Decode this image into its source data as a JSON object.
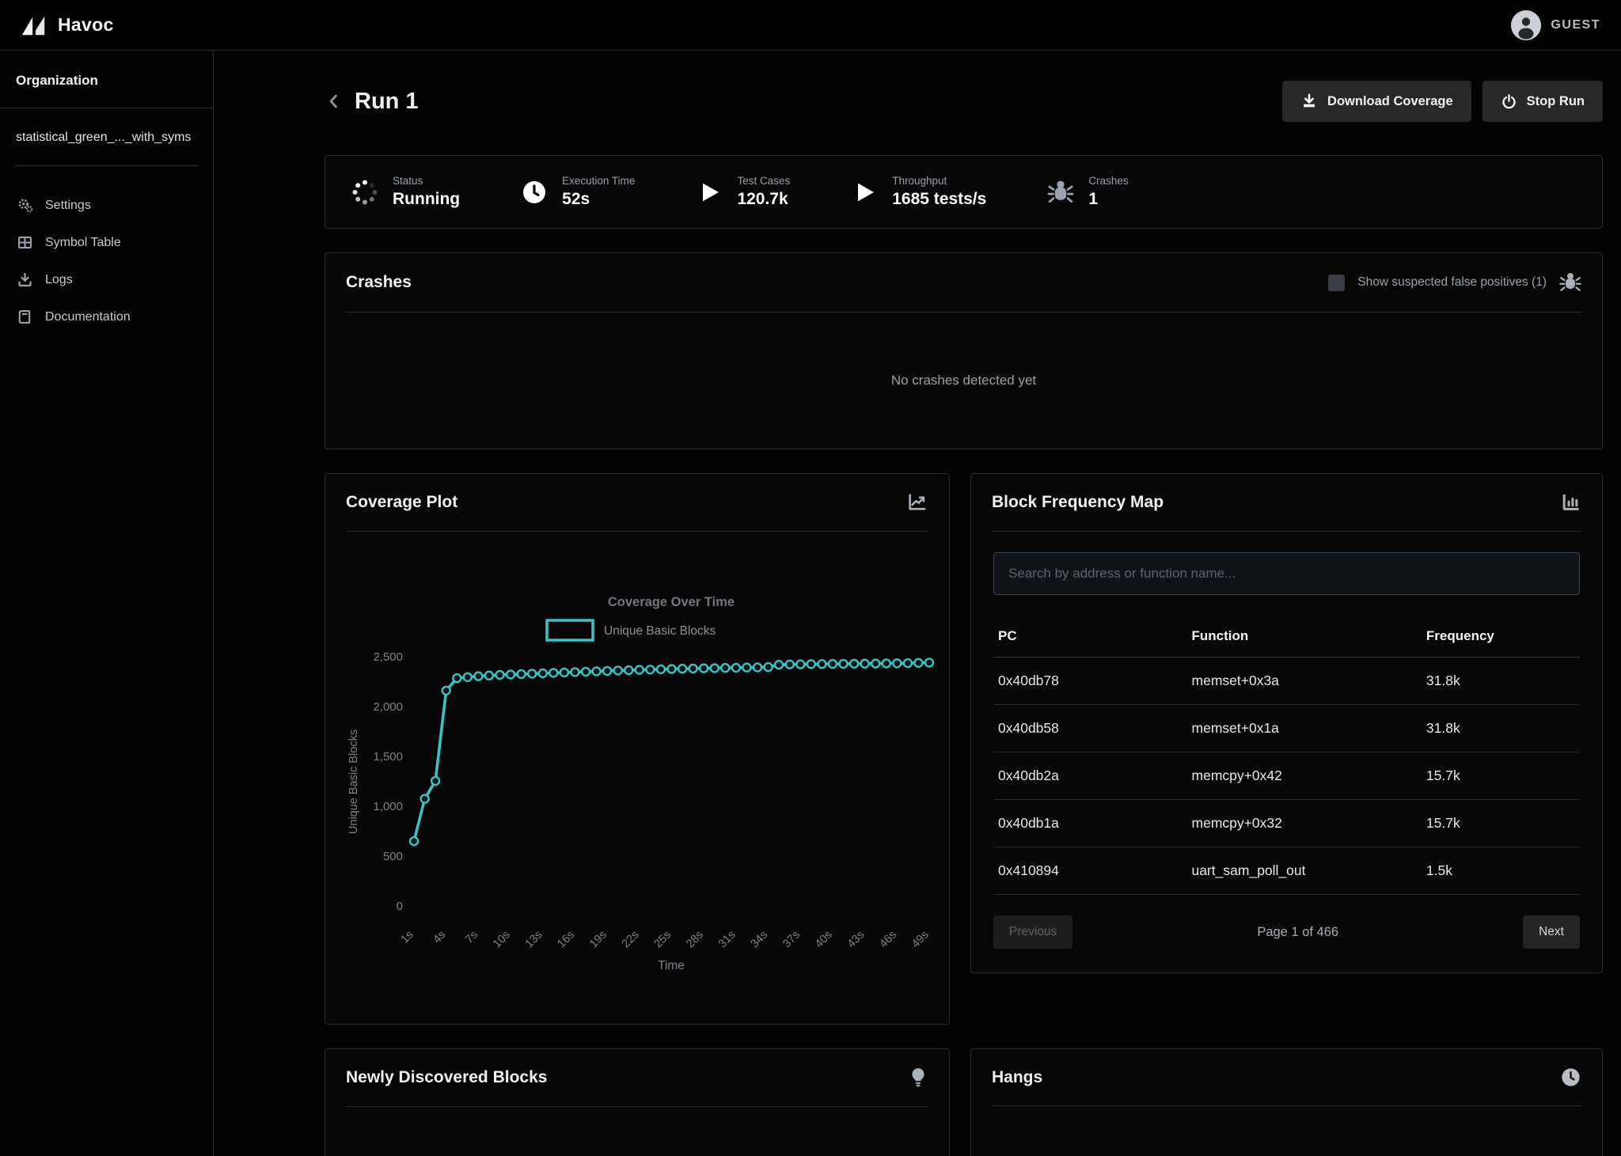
{
  "brand": {
    "name": "Havoc",
    "user": "GUEST"
  },
  "sidebar": {
    "section_label": "Organization",
    "project_name": "statistical_green_..._with_syms",
    "items": [
      {
        "label": "Settings",
        "icon": "gear-icon"
      },
      {
        "label": "Symbol Table",
        "icon": "table-icon"
      },
      {
        "label": "Logs",
        "icon": "download-icon"
      },
      {
        "label": "Documentation",
        "icon": "book-icon"
      }
    ]
  },
  "header": {
    "title": "Run 1",
    "download_button": "Download Coverage",
    "stop_button": "Stop Run"
  },
  "stats": [
    {
      "label": "Status",
      "value": "Running",
      "icon": "spinner-icon"
    },
    {
      "label": "Execution Time",
      "value": "52s",
      "icon": "clock-icon"
    },
    {
      "label": "Test Cases",
      "value": "120.7k",
      "icon": "play-icon"
    },
    {
      "label": "Throughput",
      "value": "1685 tests/s",
      "icon": "play-icon"
    },
    {
      "label": "Crashes",
      "value": "1",
      "icon": "bug-icon"
    }
  ],
  "crashes_panel": {
    "title": "Crashes",
    "checkbox_label": "Show suspected false positives (1)",
    "empty_message": "No crashes detected yet"
  },
  "coverage_panel": {
    "title": "Coverage Plot"
  },
  "chart_data": {
    "type": "line",
    "title": "Coverage Over Time",
    "xlabel": "Time",
    "ylabel": "Unique Basic Blocks",
    "legend_position": "top",
    "grid": false,
    "ylim": [
      0,
      2500
    ],
    "y_ticks": [
      0,
      500,
      1000,
      1500,
      2000,
      2500
    ],
    "x_tick_labels": [
      "1s",
      "4s",
      "7s",
      "10s",
      "13s",
      "16s",
      "19s",
      "22s",
      "25s",
      "28s",
      "31s",
      "34s",
      "37s",
      "40s",
      "43s",
      "46s",
      "49s"
    ],
    "x_tick_values": [
      1,
      4,
      7,
      10,
      13,
      16,
      19,
      22,
      25,
      28,
      31,
      34,
      37,
      40,
      43,
      46,
      49
    ],
    "series": [
      {
        "name": "Unique Basic Blocks",
        "color": "#39c3c3",
        "x": [
          1,
          2,
          3,
          4,
          5,
          6,
          7,
          8,
          9,
          10,
          11,
          12,
          13,
          14,
          15,
          16,
          17,
          18,
          19,
          20,
          21,
          22,
          23,
          24,
          25,
          26,
          27,
          28,
          29,
          30,
          31,
          32,
          33,
          34,
          35,
          36,
          37,
          38,
          39,
          40,
          41,
          42,
          43,
          44,
          45,
          46,
          47,
          48,
          49
        ],
        "values": [
          650,
          1075,
          1255,
          2160,
          2285,
          2295,
          2305,
          2312,
          2318,
          2322,
          2326,
          2330,
          2334,
          2338,
          2342,
          2346,
          2350,
          2354,
          2358,
          2362,
          2365,
          2368,
          2371,
          2374,
          2377,
          2380,
          2382,
          2384,
          2386,
          2388,
          2390,
          2392,
          2394,
          2396,
          2420,
          2422,
          2424,
          2426,
          2427,
          2428,
          2429,
          2430,
          2431,
          2432,
          2433,
          2434,
          2436,
          2438,
          2441
        ]
      }
    ]
  },
  "block_map": {
    "title": "Block Frequency Map",
    "search_placeholder": "Search by address or function name...",
    "columns": {
      "pc": "PC",
      "function": "Function",
      "frequency": "Frequency"
    },
    "rows": [
      {
        "pc": "0x40db78",
        "function": "memset+0x3a",
        "frequency": "31.8k"
      },
      {
        "pc": "0x40db58",
        "function": "memset+0x1a",
        "frequency": "31.8k"
      },
      {
        "pc": "0x40db2a",
        "function": "memcpy+0x42",
        "frequency": "15.7k"
      },
      {
        "pc": "0x40db1a",
        "function": "memcpy+0x32",
        "frequency": "15.7k"
      },
      {
        "pc": "0x410894",
        "function": "uart_sam_poll_out",
        "frequency": "1.5k"
      }
    ],
    "pagination": {
      "previous": "Previous",
      "page": "Page 1 of 466",
      "next": "Next"
    }
  },
  "newly_panel": {
    "title": "Newly Discovered Blocks"
  },
  "hangs_panel": {
    "title": "Hangs"
  },
  "colors": {
    "accent_teal": "#39c3c3",
    "panel_border": "#2c2c2c",
    "muted_text": "#9aa1ab",
    "chart_text": "#7c828b"
  }
}
